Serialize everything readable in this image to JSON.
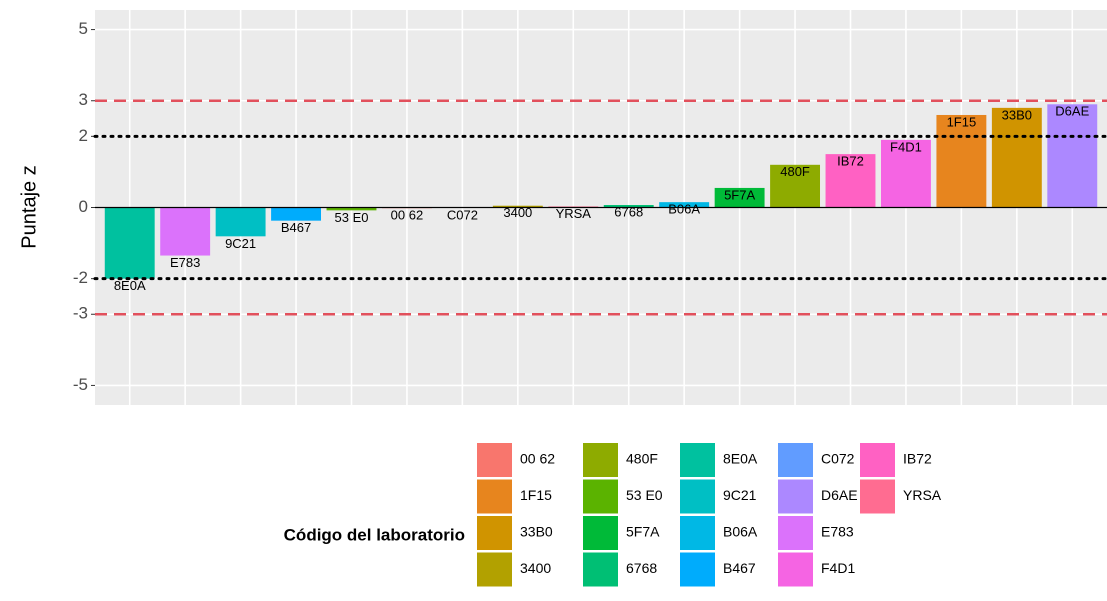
{
  "chart_data": {
    "type": "bar",
    "y_label": "Puntaje z",
    "categories": [
      "8E0A",
      "E783",
      "9C21",
      "B467",
      "53 E0",
      "00 62",
      "C072",
      "3400",
      "YRSA",
      "6768",
      "B06A",
      "5F7A",
      "480F",
      "IB72",
      "F4D1",
      "1F15",
      "33B0",
      "D6AE"
    ],
    "values": [
      -2.0,
      -1.35,
      -0.81,
      -0.37,
      -0.08,
      -0.02,
      -0.01,
      0.05,
      0.03,
      0.07,
      0.15,
      0.55,
      1.2,
      1.5,
      1.9,
      2.6,
      2.8,
      2.9
    ],
    "ylim": [
      -5.55,
      5.55
    ],
    "yticks": [
      -5,
      -3,
      -2,
      0,
      2,
      3,
      5
    ],
    "grid": true,
    "reference_lines": [
      {
        "value": 3,
        "color": "#e2505c",
        "style": "dashed"
      },
      {
        "value": -3,
        "color": "#e2505c",
        "style": "dashed"
      },
      {
        "value": 2,
        "color": "#000000",
        "style": "dotted"
      },
      {
        "value": -2,
        "color": "#000000",
        "style": "dotted"
      }
    ],
    "legend": {
      "title": "Código del laboratorio",
      "position": "bottom",
      "labels": [
        "00 62",
        "1F15",
        "33B0",
        "3400",
        "480F",
        "53 E0",
        "5F7A",
        "6768",
        "8E0A",
        "9C21",
        "B06A",
        "B467",
        "C072",
        "D6AE",
        "E783",
        "F4D1",
        "IB72",
        "YRSA"
      ],
      "colors": [
        "#F8766D",
        "#E7851E",
        "#D09400",
        "#B2A100",
        "#8EAB00",
        "#5BB300",
        "#00BA38",
        "#00BF74",
        "#00C19F",
        "#00BFC4",
        "#00B8E5",
        "#00ACFC",
        "#619CFF",
        "#AC88FF",
        "#DB72FB",
        "#F564E3",
        "#FF61C3",
        "#FF6C91"
      ]
    }
  }
}
